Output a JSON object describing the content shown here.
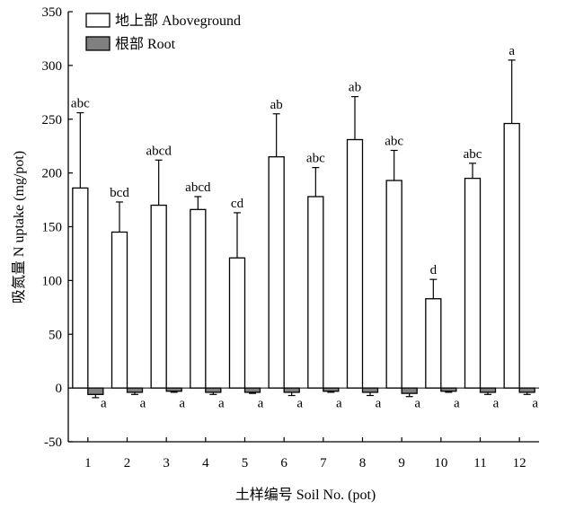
{
  "chart_data": {
    "type": "bar",
    "title": "",
    "xlabel": "土样编号 Soil No. (pot)",
    "ylabel": "吸氮量 N uptake (mg/pot)",
    "ylim": [
      -50,
      350
    ],
    "yticks": [
      "-50",
      "0",
      "50",
      "100",
      "150",
      "200",
      "250",
      "300",
      "350"
    ],
    "categories": [
      "1",
      "2",
      "3",
      "4",
      "5",
      "6",
      "7",
      "8",
      "9",
      "10",
      "11",
      "12"
    ],
    "grid": false,
    "legend_position": "top-left",
    "series": [
      {
        "name": "地上部 Aboveground",
        "color": "#ffffff",
        "values": [
          186,
          145,
          170,
          166,
          121,
          215,
          178,
          231,
          193,
          83,
          195,
          246
        ],
        "errors": [
          70,
          28,
          42,
          12,
          42,
          40,
          27,
          40,
          28,
          18,
          14,
          59
        ],
        "letters": [
          "abc",
          "bcd",
          "abcd",
          "abcd",
          "cd",
          "ab",
          "abc",
          "ab",
          "abc",
          "d",
          "abc",
          "a"
        ]
      },
      {
        "name": "根部 Root",
        "color": "#808080",
        "values": [
          -6,
          -4,
          -3,
          -4,
          -4,
          -4,
          -3,
          -4,
          -5,
          -3,
          -4,
          -4
        ],
        "errors": [
          3,
          2,
          1,
          2,
          1,
          3,
          1,
          3,
          3,
          1,
          2,
          2
        ],
        "letters": [
          "a",
          "a",
          "a",
          "a",
          "a",
          "a",
          "a",
          "a",
          "a",
          "a",
          "a",
          "a"
        ]
      }
    ]
  }
}
